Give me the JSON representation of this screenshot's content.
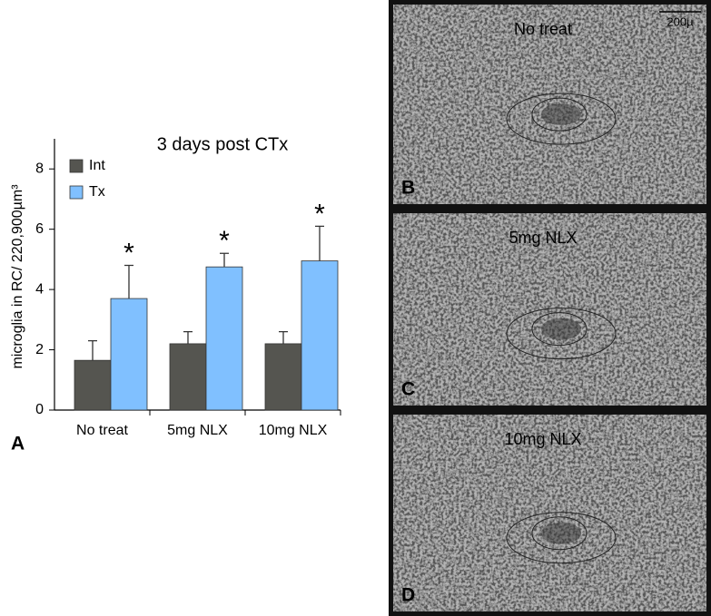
{
  "figure_label": "A",
  "chart_data": {
    "type": "bar",
    "title": "3 days post CTx",
    "y_label": "microglia in RC/ 220,900µm³",
    "categories": [
      "No treat",
      "5mg NLX",
      "10mg NLX"
    ],
    "series": [
      {
        "name": "Int",
        "color": "#555550",
        "values": [
          1.65,
          2.2,
          2.2
        ],
        "errors": [
          0.65,
          0.4,
          0.4
        ]
      },
      {
        "name": "Tx",
        "color": "#80c0ff",
        "values": [
          3.7,
          4.75,
          4.95
        ],
        "errors": [
          1.1,
          0.45,
          1.15
        ],
        "annotations": [
          "*",
          "*",
          "*"
        ]
      }
    ],
    "ylim": [
      0,
      9
    ],
    "yticks": [
      0,
      2,
      4,
      6,
      8
    ],
    "legend": "upper left"
  },
  "scale_bar": "200µ",
  "panels": [
    {
      "title": "No treat",
      "label": "B"
    },
    {
      "title": "5mg NLX",
      "label": "C"
    },
    {
      "title": "10mg NLX",
      "label": "D"
    }
  ]
}
